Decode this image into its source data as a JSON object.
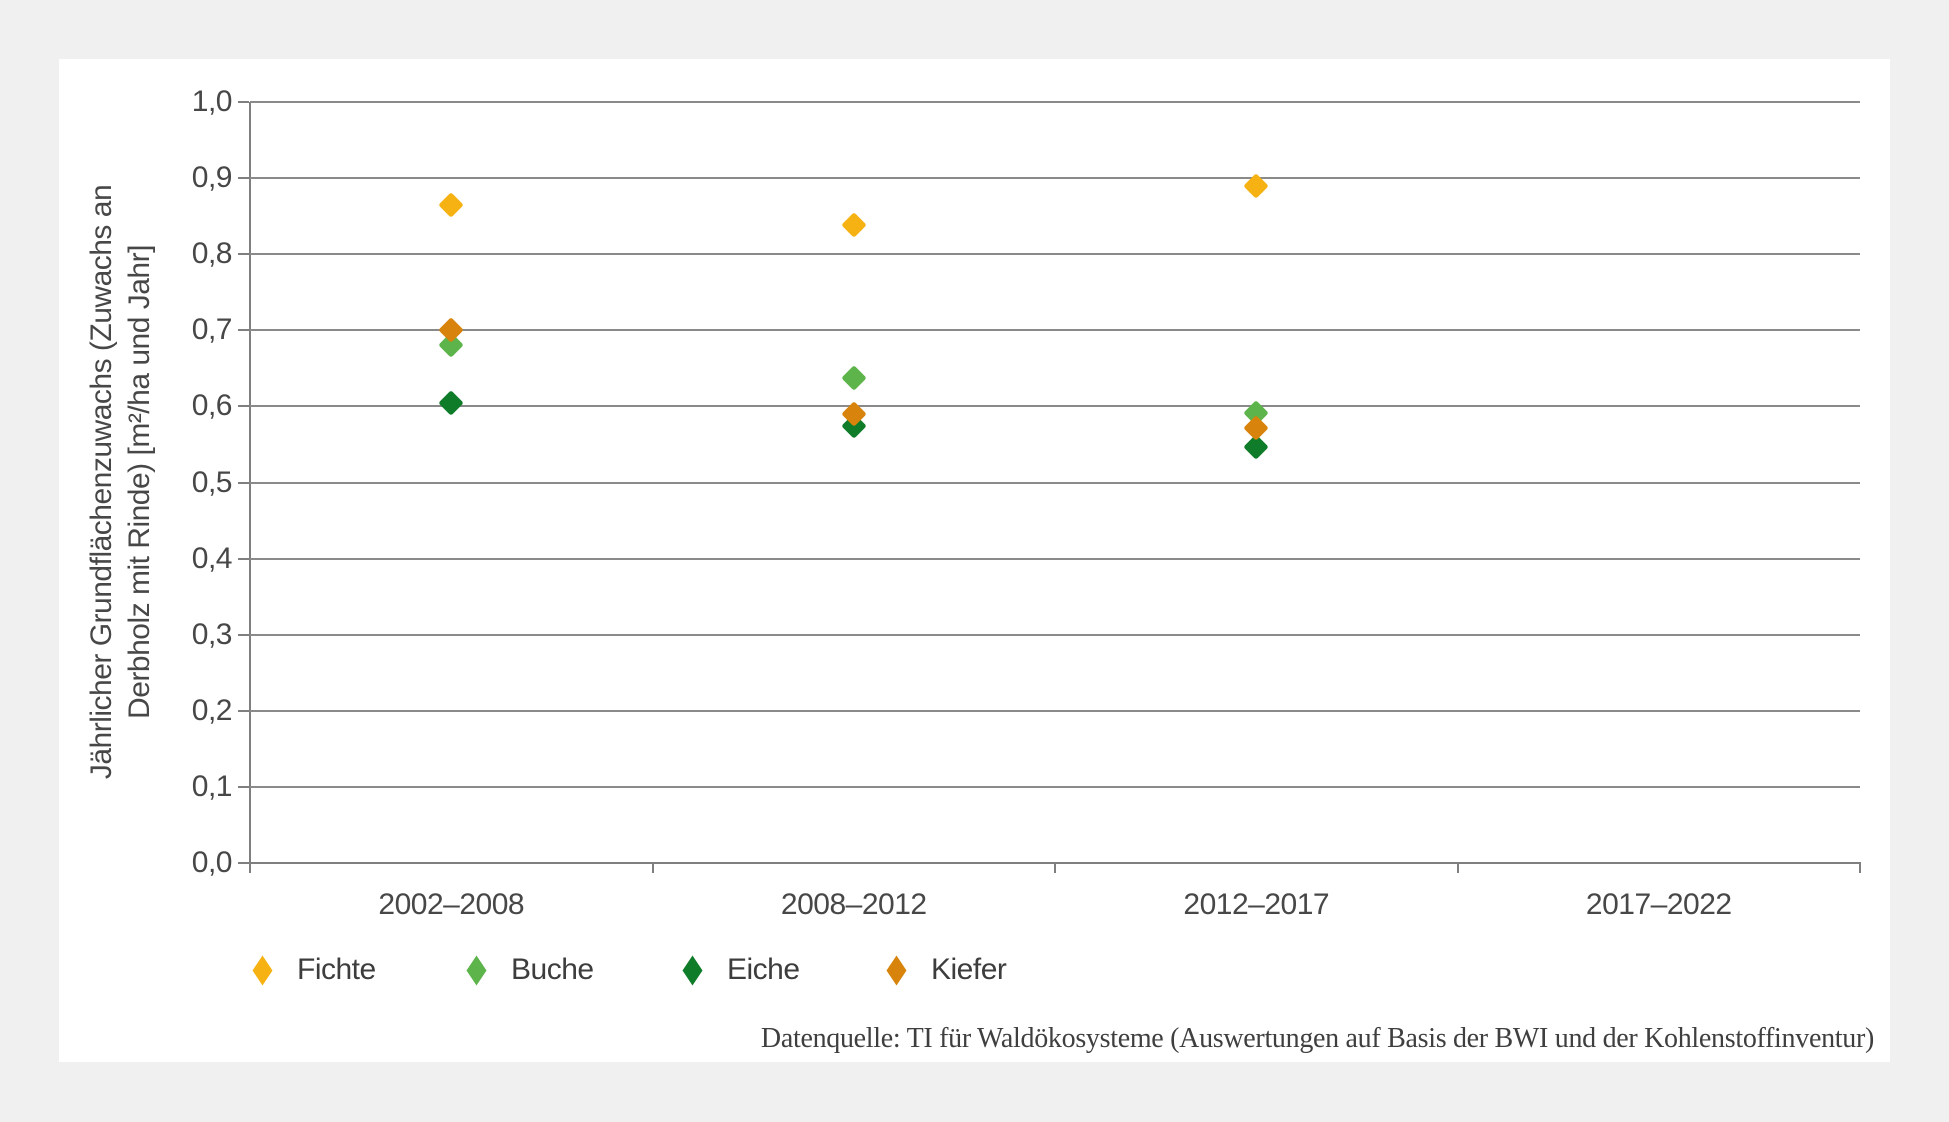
{
  "chart_data": {
    "type": "scatter",
    "title": "",
    "ylabel_line1": "Jährlicher Grundflächenzuwachs (Zuwachs an",
    "ylabel_line2": "Derbholz mit Rinde) [m²/ha und Jahr]",
    "xlabel": "",
    "ylim": [
      0.0,
      1.0
    ],
    "grid": true,
    "legend_position": "bottom",
    "categories": [
      "2002–2008",
      "2008–2012",
      "2012–2017",
      "2017–2022"
    ],
    "yticks": [
      {
        "v": 1.0,
        "label": "1,0"
      },
      {
        "v": 0.9,
        "label": "0,9"
      },
      {
        "v": 0.8,
        "label": "0,8"
      },
      {
        "v": 0.7,
        "label": "0,7"
      },
      {
        "v": 0.6,
        "label": "0,6"
      },
      {
        "v": 0.5,
        "label": "0,5"
      },
      {
        "v": 0.4,
        "label": "0,4"
      },
      {
        "v": 0.3,
        "label": "0,3"
      },
      {
        "v": 0.2,
        "label": "0,2"
      },
      {
        "v": 0.1,
        "label": "0,1"
      },
      {
        "v": 0.0,
        "label": "0,0"
      }
    ],
    "series": [
      {
        "name": "Fichte",
        "color": "#F6B213",
        "values": [
          0.864,
          0.839,
          0.889,
          null
        ]
      },
      {
        "name": "Buche",
        "color": "#5CB44A",
        "values": [
          0.681,
          0.637,
          0.591,
          null
        ]
      },
      {
        "name": "Eiche",
        "color": "#0E7C29",
        "values": [
          0.604,
          0.574,
          0.547,
          null
        ]
      },
      {
        "name": "Kiefer",
        "color": "#D8830C",
        "values": [
          0.701,
          0.59,
          0.572,
          null
        ]
      }
    ]
  },
  "footer": {
    "source": "Datenquelle: TI für Waldökosysteme (Auswertungen auf Basis der BWI und der Kohlenstoffinventur)"
  }
}
